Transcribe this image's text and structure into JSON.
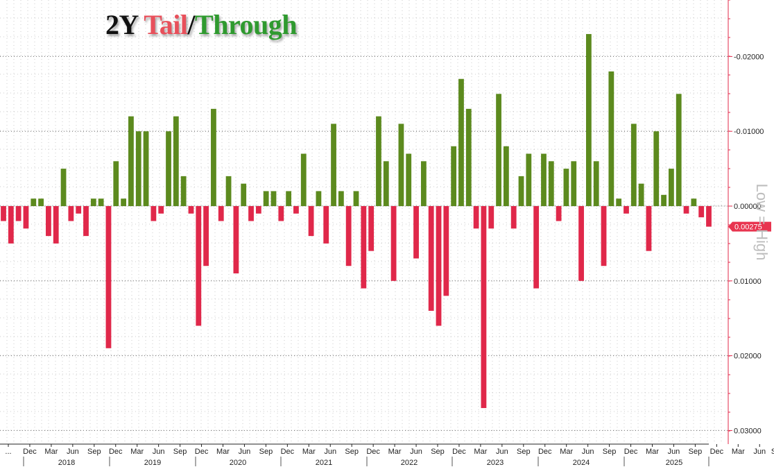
{
  "title": {
    "part1": "2Y ",
    "part2": "Tail",
    "part3": "/",
    "part4": "Through"
  },
  "y_axis_note": "Low = High",
  "colors": {
    "positive": "#5c8a1e",
    "negative": "#e0284a",
    "label_bg": "#e8344f",
    "axis": "#e0284a",
    "grid": "#666666"
  },
  "chart_data": {
    "type": "bar",
    "ylim": [
      -0.027,
      0.031
    ],
    "y_inverted": true,
    "ytick_values": [
      -0.02,
      -0.01,
      0.0,
      0.01,
      0.02,
      0.03
    ],
    "ytick_labels": [
      "-0.02000",
      "-0.01000",
      "0.00000",
      "0.01000",
      "0.02000",
      "0.03000"
    ],
    "last_value_label": "0.00275",
    "last_value": 0.00275,
    "x_tick_labels": [
      "...",
      "Dec",
      "Mar",
      "Jun",
      "Sep",
      "Dec",
      "Mar",
      "Jun",
      "Sep",
      "Dec",
      "Mar",
      "Jun",
      "Sep",
      "Dec",
      "Mar",
      "Jun",
      "Sep",
      "Dec",
      "Mar",
      "Jun",
      "Sep",
      "Dec",
      "Mar",
      "Jun",
      "Sep",
      "Dec",
      "Mar",
      "Jun",
      "Sep",
      "Dec",
      "Mar",
      "Jun",
      "Sep",
      "Dec",
      "Mar",
      "Jun",
      "Sep..."
    ],
    "years": [
      "2018",
      "2019",
      "2020",
      "2021",
      "2022",
      "2023",
      "2024",
      "2025"
    ],
    "values": [
      0.002,
      0.005,
      0.002,
      0.003,
      -0.001,
      -0.001,
      0.004,
      0.005,
      -0.005,
      0.002,
      0.001,
      0.004,
      -0.001,
      -0.001,
      0.019,
      -0.006,
      -0.001,
      -0.012,
      -0.01,
      -0.01,
      0.002,
      0.001,
      -0.01,
      -0.012,
      -0.004,
      0.001,
      0.016,
      0.008,
      -0.013,
      0.002,
      -0.004,
      0.009,
      -0.003,
      0.002,
      0.001,
      -0.002,
      -0.002,
      0.002,
      -0.002,
      0.001,
      -0.007,
      0.004,
      -0.002,
      0.005,
      -0.011,
      -0.002,
      0.008,
      -0.002,
      0.011,
      0.006,
      -0.012,
      -0.006,
      0.01,
      -0.011,
      -0.007,
      0.007,
      -0.006,
      0.014,
      0.016,
      0.012,
      -0.008,
      -0.017,
      -0.013,
      0.003,
      0.027,
      0.003,
      -0.015,
      -0.008,
      0.003,
      -0.004,
      -0.007,
      0.011,
      -0.007,
      -0.006,
      0.002,
      -0.005,
      -0.006,
      0.01,
      -0.023,
      -0.006,
      0.008,
      -0.018,
      -0.001,
      0.001,
      -0.011,
      -0.003,
      0.006,
      -0.01,
      -0.0015,
      -0.005,
      -0.015,
      0.001,
      -0.001,
      0.0015,
      0.00275
    ]
  }
}
